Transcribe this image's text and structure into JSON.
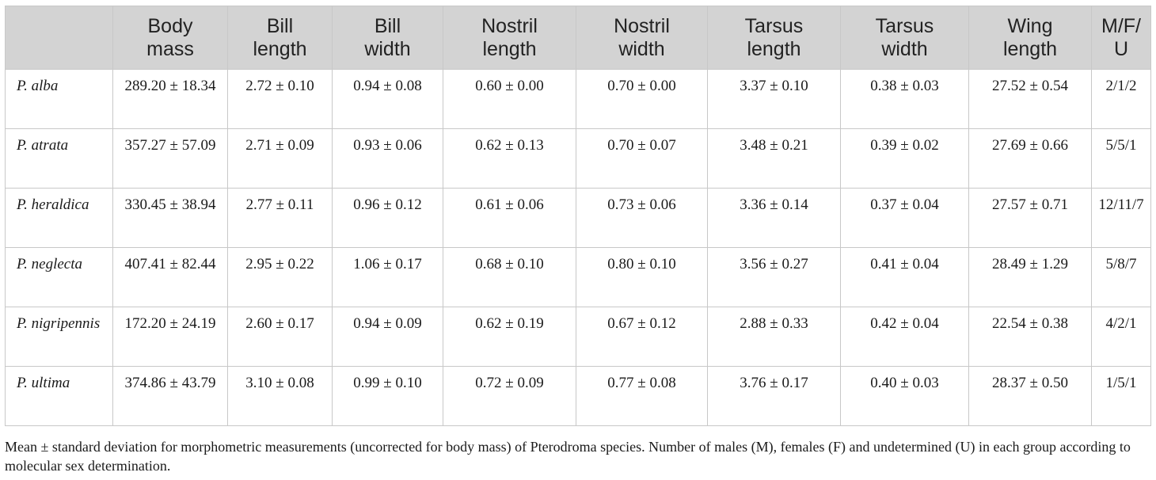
{
  "table": {
    "headers": [
      "",
      "Body mass",
      "Bill length",
      "Bill width",
      "Nostril length",
      "Nostril width",
      "Tarsus length",
      "Tarsus width",
      "Wing length",
      "M/F/U"
    ],
    "header_lines": [
      [
        "",
        ""
      ],
      [
        "Body",
        "mass"
      ],
      [
        "Bill",
        "length"
      ],
      [
        "Bill",
        "width"
      ],
      [
        "Nostril",
        "length"
      ],
      [
        "Nostril",
        "width"
      ],
      [
        "Tarsus",
        "length"
      ],
      [
        "Tarsus",
        "width"
      ],
      [
        "Wing",
        "length"
      ],
      [
        "M/F/",
        "U"
      ]
    ],
    "rows": [
      [
        "P. alba",
        "289.20 ± 18.34",
        "2.72 ± 0.10",
        "0.94 ± 0.08",
        "0.60 ± 0.00",
        "0.70 ± 0.00",
        "3.37 ± 0.10",
        "0.38 ± 0.03",
        "27.52 ± 0.54",
        "2/1/2"
      ],
      [
        "P. atrata",
        "357.27 ± 57.09",
        "2.71 ± 0.09",
        "0.93 ± 0.06",
        "0.62 ± 0.13",
        "0.70 ± 0.07",
        "3.48 ± 0.21",
        "0.39 ± 0.02",
        "27.69 ± 0.66",
        "5/5/1"
      ],
      [
        "P. heraldica",
        "330.45 ± 38.94",
        "2.77 ± 0.11",
        "0.96 ± 0.12",
        "0.61 ± 0.06",
        "0.73 ± 0.06",
        "3.36 ± 0.14",
        "0.37 ± 0.04",
        "27.57 ± 0.71",
        "12/11/7"
      ],
      [
        "P. neglecta",
        "407.41 ± 82.44",
        "2.95 ± 0.22",
        "1.06 ± 0.17",
        "0.68 ± 0.10",
        "0.80 ± 0.10",
        "3.56 ± 0.27",
        "0.41 ± 0.04",
        "28.49 ± 1.29",
        "5/8/7"
      ],
      [
        "P. nigripennis",
        "172.20 ± 24.19",
        "2.60 ± 0.17",
        "0.94 ± 0.09",
        "0.62 ± 0.19",
        "0.67 ± 0.12",
        "2.88 ± 0.33",
        "0.42 ± 0.04",
        "22.54 ± 0.38",
        "4/2/1"
      ],
      [
        "P. ultima",
        "374.86 ± 43.79",
        "3.10 ± 0.08",
        "0.99 ± 0.10",
        "0.72 ± 0.09",
        "0.77 ± 0.08",
        "3.76 ± 0.17",
        "0.40 ± 0.03",
        "28.37 ± 0.50",
        "1/5/1"
      ]
    ]
  },
  "caption": "Mean ± standard deviation for morphometric measurements (uncorrected for body mass) of Pterodroma species. Number of males (M), females (F) and undetermined (U) in each group according to molecular sex determination."
}
